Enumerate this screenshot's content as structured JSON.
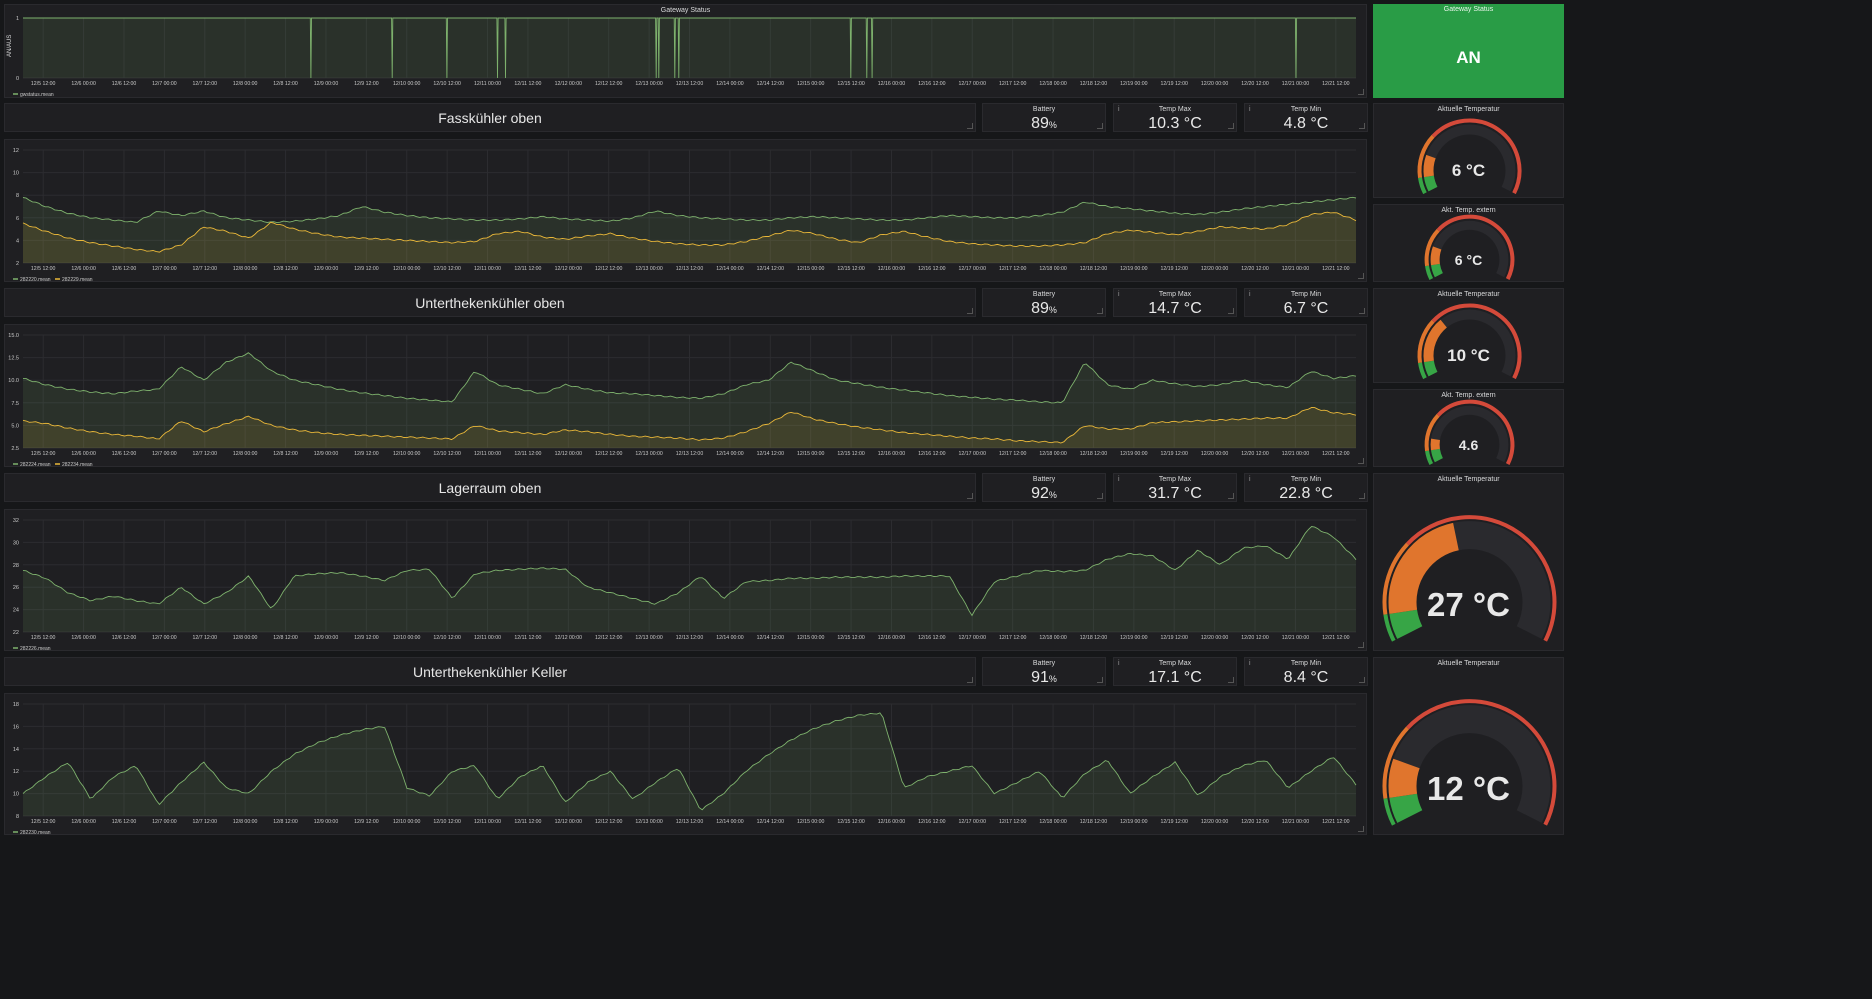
{
  "gateway": {
    "title": "Gateway Status",
    "ylabel": "AN/AUS",
    "legend": "gwstatus.mean",
    "status_title": "Gateway Status",
    "status_value": "AN",
    "status_color": "#299c46"
  },
  "x_ticks": [
    "12/5 12:00",
    "12/6 00:00",
    "12/6 12:00",
    "12/7 00:00",
    "12/7 12:00",
    "12/8 00:00",
    "12/8 12:00",
    "12/9 00:00",
    "12/9 12:00",
    "12/10 00:00",
    "12/10 12:00",
    "12/11 00:00",
    "12/11 12:00",
    "12/12 00:00",
    "12/12 12:00",
    "12/13 00:00",
    "12/13 12:00",
    "12/14 00:00",
    "12/14 12:00",
    "12/15 00:00",
    "12/15 12:00",
    "12/16 00:00",
    "12/16 12:00",
    "12/17 00:00",
    "12/17 12:00",
    "12/18 00:00",
    "12/18 12:00",
    "12/19 00:00",
    "12/19 12:00",
    "12/20 00:00",
    "12/20 12:00",
    "12/21 00:00",
    "12/21 12:00"
  ],
  "colors": {
    "green": "#7eb26d",
    "yellow": "#eab839",
    "gauge_green": "#37a546",
    "gauge_orange": "#e0752d",
    "gauge_red": "#d44a3a"
  },
  "sections": [
    {
      "title": "Fasskühler oben",
      "battery_label": "Battery",
      "battery": "89",
      "battery_unit": "%",
      "max_label": "Temp Max",
      "max": "10.3 °C",
      "min_label": "Temp Min",
      "min": "4.8 °C",
      "legend": [
        "282220.mean",
        "282229.mean"
      ],
      "gauge_title": "Aktuelle Temperatur",
      "gauge_value": "6 °C",
      "gauge_level": 6,
      "gauge_max": 30,
      "gauge2_title": "Akt. Temp. extern",
      "gauge2_value": "6 °C",
      "gauge2_level": 6
    },
    {
      "title": "Unterthekenkühler oben",
      "battery_label": "Battery",
      "battery": "89",
      "battery_unit": "%",
      "max_label": "Temp Max",
      "max": "14.7 °C",
      "min_label": "Temp Min",
      "min": "6.7 °C",
      "legend": [
        "282224.mean",
        "282234.mean"
      ],
      "gauge_title": "Aktuelle Temperatur",
      "gauge_value": "10 °C",
      "gauge_level": 10,
      "gauge_max": 30,
      "gauge2_title": "Akt. Temp. extern",
      "gauge2_value": "4.6",
      "gauge2_level": 4.6
    },
    {
      "title": "Lagerraum oben",
      "battery_label": "Battery",
      "battery": "92",
      "battery_unit": "%",
      "max_label": "Temp Max",
      "max": "31.7 °C",
      "min_label": "Temp Min",
      "min": "22.8 °C",
      "legend": [
        "282226.mean"
      ],
      "gauge_title": "Aktuelle Temperatur",
      "gauge_value": "27 °C",
      "gauge_level": 27,
      "gauge_max": 60
    },
    {
      "title": "Unterthekenkühler Keller",
      "battery_label": "Battery",
      "battery": "91",
      "battery_unit": "%",
      "max_label": "Temp Max",
      "max": "17.1 °C",
      "min_label": "Temp Min",
      "min": "8.4 °C",
      "legend": [
        "282230.mean"
      ],
      "gauge_title": "Aktuelle Temperatur",
      "gauge_value": "12 °C",
      "gauge_level": 12,
      "gauge_max": 60
    }
  ],
  "chart_data": [
    {
      "type": "line",
      "name": "gateway",
      "ylim": [
        0,
        1
      ],
      "yticks": [
        "0",
        "1"
      ],
      "series": [
        {
          "name": "gwstatus.mean",
          "baseline": 1,
          "dips": [
            0.216,
            0.277,
            0.318,
            0.356,
            0.362,
            0.475,
            0.477,
            0.489,
            0.492,
            0.621,
            0.633,
            0.637,
            0.955
          ]
        }
      ]
    },
    {
      "type": "area",
      "name": "fasskuehler",
      "ylim": [
        2,
        12
      ],
      "yticks": [
        "2",
        "4",
        "6",
        "8",
        "10",
        "12"
      ],
      "series": [
        {
          "name": "282220.mean",
          "values": [
            7.8,
            7.0,
            6.4,
            6.0,
            5.8,
            5.6,
            6.6,
            6.2,
            6.6,
            6.0,
            5.8,
            5.6,
            5.7,
            5.9,
            6.2,
            7.0,
            6.5,
            6.2,
            6.0,
            5.9,
            5.8,
            5.8,
            5.9,
            6.1,
            5.9,
            5.8,
            5.7,
            6.0,
            6.6,
            6.2,
            6.0,
            5.9,
            5.8,
            5.8,
            6.0,
            6.1,
            6.0,
            5.9,
            5.8,
            5.8,
            6.0,
            6.2,
            6.1,
            6.0,
            6.0,
            6.2,
            6.5,
            7.4,
            7.0,
            6.8,
            6.6,
            6.4,
            6.3,
            6.5,
            6.8,
            7.0,
            7.2,
            7.4,
            7.6,
            7.8
          ]
        },
        {
          "name": "282229.mean",
          "values": [
            5.5,
            4.8,
            4.2,
            3.8,
            3.5,
            3.2,
            3.0,
            3.6,
            5.2,
            4.8,
            4.2,
            5.6,
            5.0,
            4.6,
            4.3,
            4.2,
            4.1,
            4.0,
            3.9,
            3.8,
            3.9,
            4.6,
            4.8,
            4.3,
            4.1,
            4.4,
            4.6,
            4.2,
            3.9,
            3.7,
            3.6,
            3.6,
            3.9,
            4.4,
            4.9,
            4.6,
            4.1,
            3.8,
            4.5,
            4.8,
            4.3,
            3.9,
            3.7,
            3.6,
            3.5,
            3.5,
            3.6,
            3.8,
            4.6,
            4.9,
            4.7,
            4.5,
            4.8,
            5.2,
            5.1,
            5.0,
            5.4,
            6.3,
            6.5,
            5.8
          ]
        }
      ]
    },
    {
      "type": "area",
      "name": "unterthekenkuehler-oben",
      "ylim": [
        2.5,
        15
      ],
      "yticks": [
        "2.5",
        "5.0",
        "7.5",
        "10.0",
        "12.5",
        "15.0"
      ],
      "series": [
        {
          "name": "282224.mean",
          "values": [
            10.2,
            9.5,
            9.0,
            8.7,
            8.5,
            8.8,
            9.0,
            11.5,
            10.0,
            12.0,
            13.0,
            11.0,
            10.0,
            9.5,
            9.0,
            8.6,
            8.3,
            8.0,
            7.8,
            7.6,
            11.0,
            9.5,
            9.0,
            8.5,
            9.5,
            9.0,
            8.6,
            8.5,
            8.3,
            8.1,
            8.0,
            8.5,
            9.5,
            10.0,
            12.0,
            11.0,
            10.0,
            9.6,
            9.2,
            8.9,
            8.6,
            8.3,
            8.1,
            7.9,
            7.8,
            7.6,
            7.5,
            12.0,
            9.5,
            9.0,
            10.0,
            9.6,
            9.3,
            9.5,
            10.0,
            9.5,
            9.2,
            11.0,
            10.2,
            10.5
          ]
        },
        {
          "name": "282234.mean",
          "values": [
            5.5,
            5.2,
            4.7,
            4.3,
            4.0,
            3.8,
            3.5,
            5.5,
            4.3,
            5.2,
            6.0,
            5.0,
            4.5,
            4.2,
            4.0,
            3.9,
            3.8,
            3.7,
            3.6,
            3.5,
            5.0,
            4.4,
            4.2,
            4.0,
            4.5,
            4.3,
            4.0,
            3.8,
            3.7,
            3.6,
            3.4,
            3.6,
            4.3,
            5.2,
            6.5,
            5.7,
            5.2,
            4.8,
            4.5,
            4.2,
            4.0,
            3.8,
            3.6,
            3.5,
            3.3,
            3.2,
            3.1,
            5.0,
            4.6,
            4.6,
            5.3,
            5.4,
            5.5,
            5.6,
            5.7,
            5.8,
            5.8,
            7.0,
            6.4,
            6.2
          ]
        }
      ]
    },
    {
      "type": "area",
      "name": "lagerraum",
      "ylim": [
        22,
        32
      ],
      "yticks": [
        "22",
        "24",
        "26",
        "28",
        "30",
        "32"
      ],
      "series": [
        {
          "name": "282226.mean",
          "values": [
            27.5,
            26.8,
            25.5,
            24.8,
            25.2,
            24.8,
            24.5,
            26.0,
            24.5,
            25.5,
            27.0,
            24.0,
            27.0,
            27.2,
            27.3,
            27.0,
            26.6,
            27.5,
            27.6,
            25.0,
            27.2,
            27.5,
            27.6,
            27.7,
            27.6,
            26.0,
            25.5,
            25.0,
            24.5,
            25.5,
            27.0,
            25.0,
            26.5,
            26.6,
            26.8,
            26.8,
            26.9,
            26.9,
            26.9,
            27.0,
            27.0,
            27.0,
            23.5,
            26.5,
            27.0,
            27.5,
            27.4,
            27.5,
            28.5,
            29.0,
            28.8,
            27.5,
            29.3,
            28.0,
            29.5,
            29.7,
            28.5,
            31.5,
            30.5,
            28.5
          ]
        }
      ]
    },
    {
      "type": "area",
      "name": "unterthekenkuehler-keller",
      "ylim": [
        8,
        18
      ],
      "yticks": [
        "8",
        "10",
        "12",
        "14",
        "16",
        "18"
      ],
      "series": [
        {
          "name": "282230.mean",
          "values": [
            10.0,
            11.5,
            12.8,
            9.5,
            11.5,
            12.5,
            9.0,
            11.0,
            12.8,
            10.5,
            10.0,
            12.0,
            13.5,
            14.5,
            15.2,
            15.7,
            16.0,
            10.5,
            9.8,
            12.0,
            12.5,
            9.5,
            11.5,
            12.5,
            9.2,
            11.0,
            12.0,
            9.5,
            11.0,
            12.3,
            8.5,
            10.0,
            12.0,
            13.5,
            14.8,
            15.8,
            16.5,
            17.0,
            17.2,
            10.5,
            11.5,
            12.0,
            12.5,
            10.0,
            11.0,
            12.0,
            9.6,
            11.8,
            13.0,
            10.0,
            11.5,
            12.8,
            9.8,
            11.5,
            12.5,
            13.0,
            10.5,
            12.0,
            13.3,
            10.8
          ]
        }
      ]
    }
  ]
}
